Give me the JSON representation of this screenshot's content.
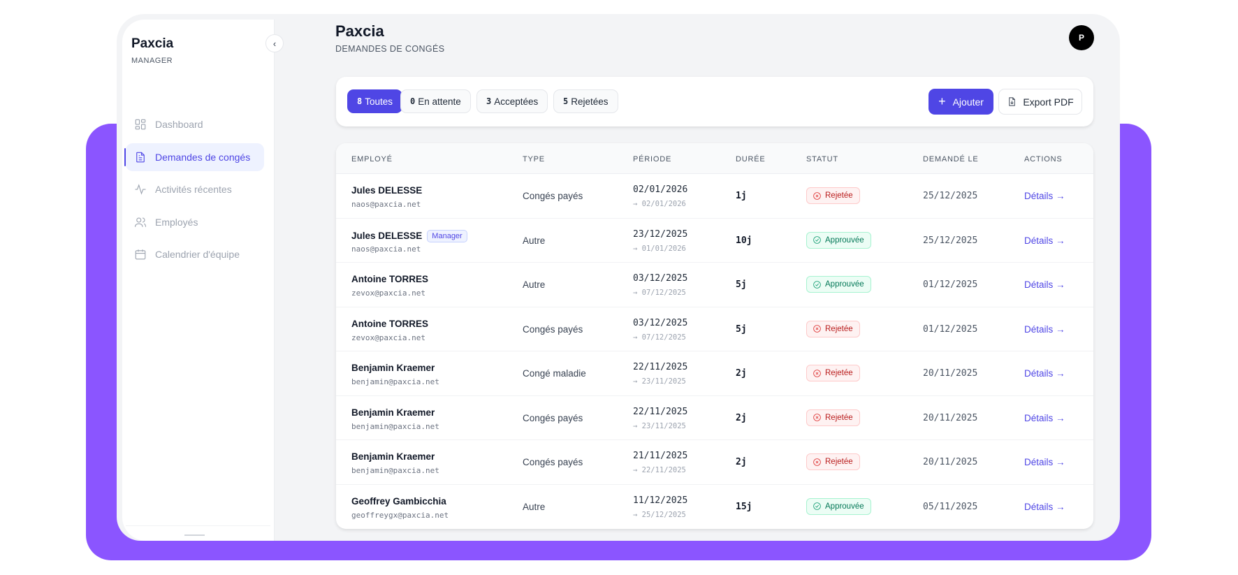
{
  "app": {
    "brand": "Paxcia",
    "role": "MANAGER",
    "accent": "#4f46e5",
    "backdrop": "#8b55ff"
  },
  "sidebar": {
    "items": [
      {
        "label": "Dashboard",
        "icon": "grid-icon",
        "active": false
      },
      {
        "label": "Demandes de congés",
        "icon": "document-icon",
        "active": true
      },
      {
        "label": "Activités récentes",
        "icon": "activity-icon",
        "active": false
      },
      {
        "label": "Employés",
        "icon": "users-icon",
        "active": false
      },
      {
        "label": "Calendrier d'équipe",
        "icon": "calendar-icon",
        "active": false
      }
    ]
  },
  "header": {
    "title": "Paxcia",
    "subtitle": "DEMANDES DE CONGÉS",
    "avatar": "P"
  },
  "filters": [
    {
      "count": "8",
      "label": "Toutes",
      "active": true
    },
    {
      "count": "0",
      "label": "En attente",
      "active": false
    },
    {
      "count": "3",
      "label": "Acceptées",
      "active": false
    },
    {
      "count": "5",
      "label": "Rejetées",
      "active": false
    }
  ],
  "actions": {
    "add": "Ajouter",
    "export": "Export PDF"
  },
  "table": {
    "columns": [
      "EMPLOYÉ",
      "TYPE",
      "PÉRIODE",
      "DURÉE",
      "STATUT",
      "DEMANDÉ LE",
      "ACTIONS"
    ],
    "rows": [
      {
        "name": "Jules DELESSE",
        "badge": "",
        "email": "naos@paxcia.net",
        "type": "Congés payés",
        "start": "02/01/2026",
        "end": "→ 02/01/2026",
        "duration": "1j",
        "status": "Rejetée",
        "requested": "25/12/2025",
        "action": "Détails →"
      },
      {
        "name": "Jules DELESSE",
        "badge": "Manager",
        "email": "naos@paxcia.net",
        "type": "Autre",
        "start": "23/12/2025",
        "end": "→ 01/01/2026",
        "duration": "10j",
        "status": "Approuvée",
        "requested": "25/12/2025",
        "action": "Détails →"
      },
      {
        "name": "Antoine TORRES",
        "badge": "",
        "email": "zevox@paxcia.net",
        "type": "Autre",
        "start": "03/12/2025",
        "end": "→ 07/12/2025",
        "duration": "5j",
        "status": "Approuvée",
        "requested": "01/12/2025",
        "action": "Détails →"
      },
      {
        "name": "Antoine TORRES",
        "badge": "",
        "email": "zevox@paxcia.net",
        "type": "Congés payés",
        "start": "03/12/2025",
        "end": "→ 07/12/2025",
        "duration": "5j",
        "status": "Rejetée",
        "requested": "01/12/2025",
        "action": "Détails →"
      },
      {
        "name": "Benjamin Kraemer",
        "badge": "",
        "email": "benjamin@paxcia.net",
        "type": "Congé maladie",
        "start": "22/11/2025",
        "end": "→ 23/11/2025",
        "duration": "2j",
        "status": "Rejetée",
        "requested": "20/11/2025",
        "action": "Détails →"
      },
      {
        "name": "Benjamin Kraemer",
        "badge": "",
        "email": "benjamin@paxcia.net",
        "type": "Congés payés",
        "start": "22/11/2025",
        "end": "→ 23/11/2025",
        "duration": "2j",
        "status": "Rejetée",
        "requested": "20/11/2025",
        "action": "Détails →"
      },
      {
        "name": "Benjamin Kraemer",
        "badge": "",
        "email": "benjamin@paxcia.net",
        "type": "Congés payés",
        "start": "21/11/2025",
        "end": "→ 22/11/2025",
        "duration": "2j",
        "status": "Rejetée",
        "requested": "20/11/2025",
        "action": "Détails →"
      },
      {
        "name": "Geoffrey Gambicchia",
        "badge": "",
        "email": "geoffreygx@paxcia.net",
        "type": "Autre",
        "start": "11/12/2025",
        "end": "→ 25/12/2025",
        "duration": "15j",
        "status": "Approuvée",
        "requested": "05/11/2025",
        "action": "Détails →"
      }
    ]
  }
}
